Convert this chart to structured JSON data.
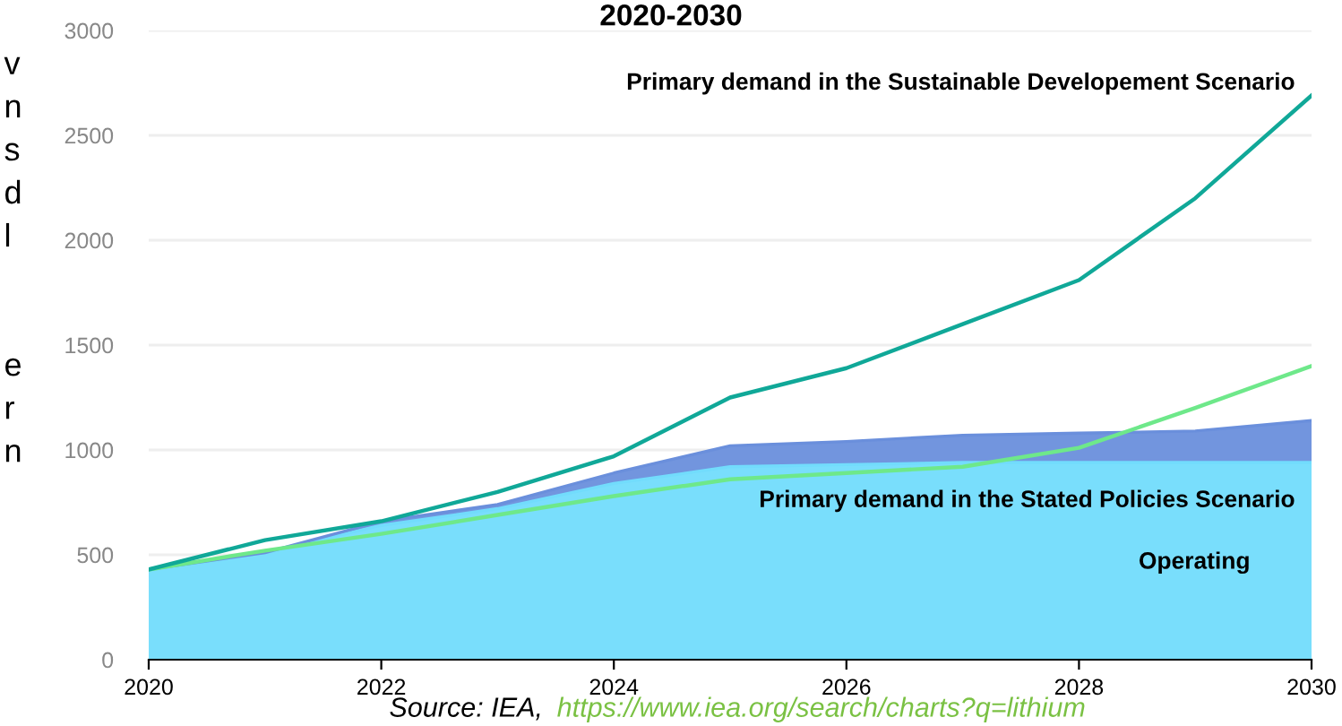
{
  "chart_data": {
    "type": "area",
    "title": "2020-2030",
    "stacked": true,
    "x": [
      2020,
      2021,
      2022,
      2023,
      2024,
      2025,
      2026,
      2027,
      2028,
      2029,
      2030
    ],
    "series": [
      {
        "color": "#72dcfc",
        "values": [
          430,
          510,
          640,
          720,
          840,
          920,
          930,
          940,
          940,
          940,
          940
        ]
      },
      {
        "color": "#6a8fdc",
        "values": [
          0,
          0,
          20,
          20,
          50,
          100,
          110,
          130,
          140,
          150,
          200
        ]
      },
      {
        "type": "line",
        "color": "#6ee88a",
        "values": [
          430,
          520,
          600,
          690,
          780,
          860,
          890,
          920,
          1010,
          1200,
          1400
        ]
      },
      {
        "type": "line",
        "color": "#10a898",
        "values": [
          430,
          570,
          660,
          800,
          970,
          1250,
          1390,
          1600,
          1810,
          2200,
          2690
        ]
      }
    ],
    "xlim": [
      2020,
      2030
    ],
    "xticks": [
      2020,
      2022,
      2024,
      2026,
      2028,
      2030
    ],
    "ylim": [
      0,
      3000
    ],
    "yticks": [
      0,
      500,
      1000,
      1500,
      2000,
      2500,
      3000
    ],
    "grid": "y",
    "annotations": [
      "Source: IEA,",
      "https://www.iea.org/search/charts?q=lithium",
      "v\nn\ns\nd\nl\n\n\ne\nr\nn",
      "Primary demand in the Sustainable Developement Scenario",
      "Primary demand in the Stated Policies Scenario",
      "Operating"
    ]
  }
}
